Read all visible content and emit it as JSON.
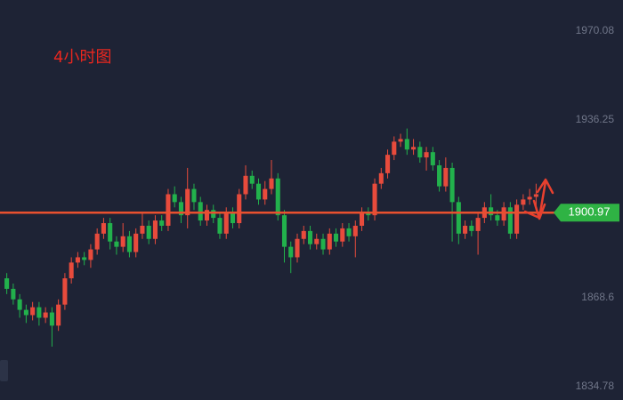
{
  "chart_data": {
    "type": "candlestick",
    "title": "4小时图",
    "open": [
      1876,
      1872,
      1868,
      1864,
      1862,
      1865,
      1861,
      1863,
      1858,
      1866,
      1876,
      1882,
      1884,
      1883,
      1887,
      1893,
      1897,
      1890,
      1888,
      1892,
      1886,
      1893,
      1896,
      1891,
      1898,
      1896,
      1908,
      1905,
      1900,
      1910,
      1905,
      1898,
      1902,
      1899,
      1893,
      1901,
      1897,
      1908,
      1915,
      1912,
      1906,
      1910,
      1914,
      1900,
      1888,
      1884,
      1891,
      1894,
      1889,
      1891,
      1887,
      1893,
      1890,
      1895,
      1892,
      1896,
      1901,
      1900,
      1912,
      1916,
      1923,
      1928,
      1929,
      1925,
      1926,
      1922,
      1924,
      1919,
      1911,
      1918,
      1905,
      1893,
      1896,
      1894,
      1899,
      1903,
      1900,
      1898,
      1903,
      1893,
      1904,
      1906,
      1907
    ],
    "high": [
      1878,
      1874,
      1870,
      1866,
      1867,
      1867,
      1865,
      1865,
      1868,
      1878,
      1884,
      1886,
      1886,
      1889,
      1895,
      1899,
      1899,
      1892,
      1897,
      1894,
      1895,
      1901,
      1898,
      1900,
      1900,
      1910,
      1911,
      1907,
      1918,
      1912,
      1907,
      1904,
      1904,
      1901,
      1903,
      1903,
      1910,
      1919,
      1917,
      1914,
      1913,
      1921,
      1916,
      1902,
      1890,
      1893,
      1896,
      1896,
      1893,
      1893,
      1895,
      1895,
      1897,
      1897,
      1898,
      1903,
      1903,
      1914,
      1918,
      1925,
      1930,
      1931,
      1933,
      1929,
      1928,
      1926,
      1926,
      1921,
      1922,
      1920,
      1907,
      1898,
      1898,
      1901,
      1905,
      1908,
      1902,
      1905,
      1905,
      1906,
      1908,
      1910,
      1912
    ],
    "low": [
      1870,
      1866,
      1861,
      1859,
      1860,
      1858,
      1859,
      1850,
      1856,
      1864,
      1874,
      1880,
      1881,
      1880,
      1885,
      1891,
      1887,
      1885,
      1886,
      1884,
      1884,
      1891,
      1889,
      1889,
      1894,
      1894,
      1903,
      1897,
      1895,
      1902,
      1896,
      1896,
      1897,
      1891,
      1891,
      1895,
      1895,
      1906,
      1910,
      1904,
      1904,
      1908,
      1898,
      1882,
      1878,
      1882,
      1889,
      1887,
      1887,
      1885,
      1885,
      1888,
      1888,
      1890,
      1884,
      1894,
      1898,
      1898,
      1910,
      1914,
      1921,
      1926,
      1923,
      1923,
      1920,
      1917,
      1917,
      1909,
      1909,
      1890,
      1889,
      1891,
      1892,
      1885,
      1897,
      1898,
      1896,
      1896,
      1891,
      1891,
      1902,
      1904,
      1902
    ],
    "close": [
      1872,
      1868,
      1864,
      1862,
      1865,
      1861,
      1863,
      1858,
      1866,
      1876,
      1882,
      1884,
      1883,
      1887,
      1893,
      1897,
      1890,
      1888,
      1892,
      1886,
      1893,
      1896,
      1891,
      1898,
      1896,
      1908,
      1905,
      1900,
      1910,
      1905,
      1898,
      1902,
      1899,
      1893,
      1901,
      1897,
      1908,
      1915,
      1912,
      1906,
      1910,
      1914,
      1900,
      1888,
      1884,
      1891,
      1894,
      1889,
      1891,
      1887,
      1893,
      1890,
      1895,
      1892,
      1896,
      1901,
      1900,
      1912,
      1916,
      1923,
      1928,
      1929,
      1925,
      1926,
      1922,
      1924,
      1919,
      1911,
      1918,
      1905,
      1893,
      1896,
      1894,
      1899,
      1903,
      1900,
      1898,
      1903,
      1893,
      1904,
      1906,
      1907,
      1908
    ],
    "up_color": "#e84b3c",
    "down_color": "#22b14c",
    "ylim": [
      1829.7,
      1981.9
    ],
    "yticks": [
      1970.08,
      1936.25,
      1868.6,
      1834.78
    ],
    "price_line": 1900.97,
    "price_line_color": "#e8502f",
    "price_label_color": "#2fb344"
  }
}
